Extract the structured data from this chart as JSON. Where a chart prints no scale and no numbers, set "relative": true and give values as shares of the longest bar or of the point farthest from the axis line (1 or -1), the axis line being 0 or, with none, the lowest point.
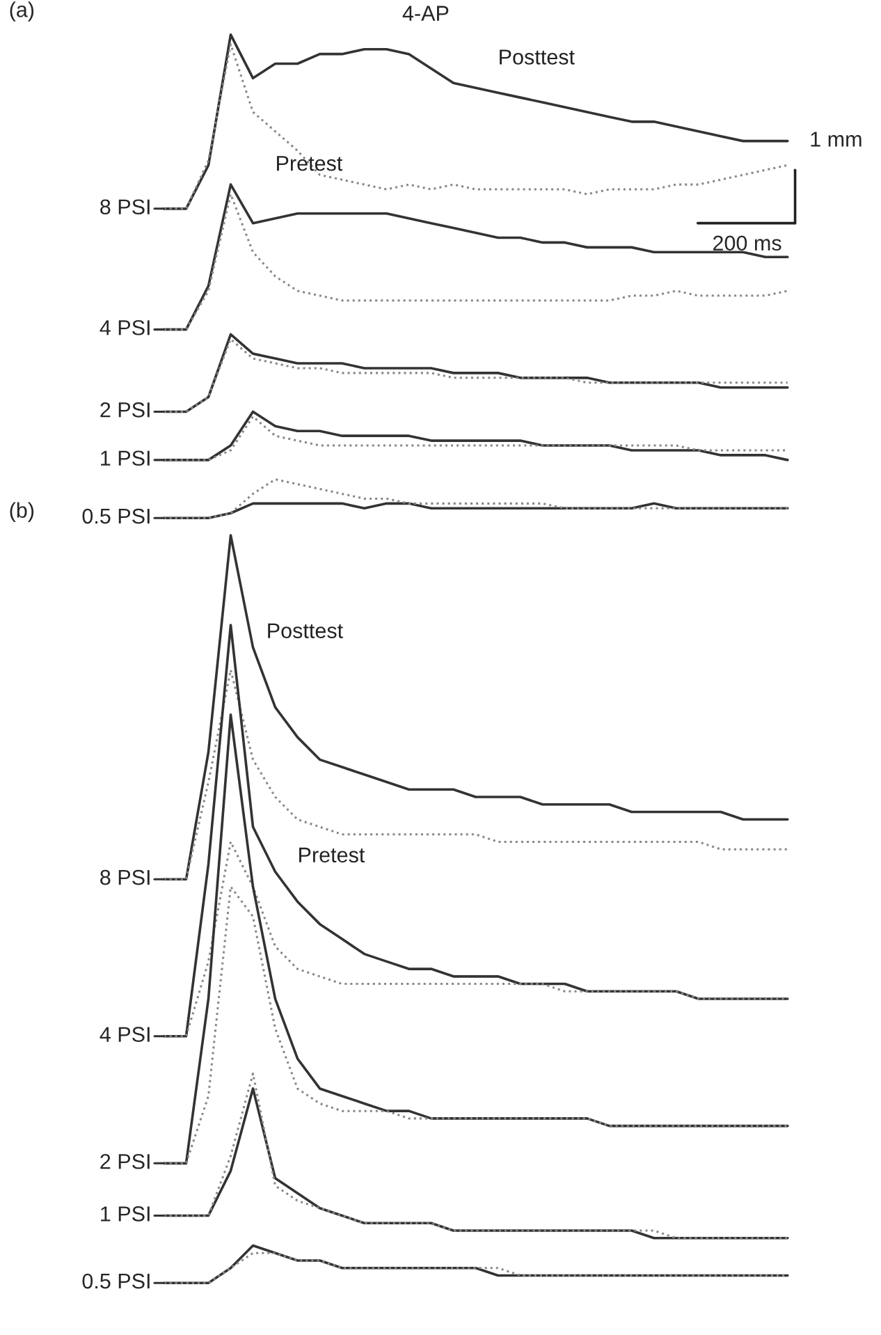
{
  "chart_data": [
    {
      "type": "line",
      "title": "(a)",
      "relative": true,
      "categories": [
        null,
        null,
        null,
        null,
        null,
        null,
        null,
        null,
        null,
        null,
        null,
        null,
        null,
        null,
        null,
        null,
        null,
        null,
        null,
        null,
        null,
        null,
        null,
        null,
        null,
        null,
        null,
        null,
        null
      ],
      "series": [
        {
          "name": "Posttest",
          "color": "#333333",
          "line_style": "solid",
          "values": [
            0.64,
            0.64,
            0.73,
            1.0,
            0.91,
            0.94,
            0.94,
            0.96,
            0.96,
            0.97,
            0.97,
            0.96,
            0.93,
            0.9,
            0.89,
            0.88,
            0.87,
            0.86,
            0.85,
            0.84,
            0.83,
            0.82,
            0.82,
            0.81,
            0.8,
            0.79,
            0.78,
            0.78,
            0.78
          ]
        },
        {
          "name": "Pretest",
          "color": "#888888",
          "line_style": "dotted",
          "values": [
            0.64,
            0.64,
            0.74,
            0.98,
            0.84,
            0.8,
            0.76,
            0.71,
            0.7,
            0.69,
            0.68,
            0.69,
            0.68,
            0.69,
            0.68,
            0.68,
            0.68,
            0.68,
            0.68,
            0.67,
            0.68,
            0.68,
            0.68,
            0.69,
            0.69,
            0.7,
            0.71,
            0.72,
            0.73
          ]
        },
        {
          "color": "#333333",
          "line_style": "solid",
          "values": [
            0.39,
            0.39,
            0.48,
            0.69,
            0.61,
            0.62,
            0.63,
            0.63,
            0.63,
            0.63,
            0.63,
            0.62,
            0.61,
            0.6,
            0.59,
            0.58,
            0.58,
            0.57,
            0.57,
            0.56,
            0.56,
            0.56,
            0.55,
            0.55,
            0.55,
            0.55,
            0.55,
            0.54,
            0.54
          ]
        },
        {
          "color": "#888888",
          "line_style": "dotted",
          "values": [
            0.39,
            0.39,
            0.47,
            0.67,
            0.55,
            0.5,
            0.47,
            0.46,
            0.45,
            0.45,
            0.45,
            0.45,
            0.45,
            0.45,
            0.45,
            0.45,
            0.45,
            0.45,
            0.45,
            0.45,
            0.45,
            0.46,
            0.46,
            0.47,
            0.46,
            0.46,
            0.46,
            0.46,
            0.47
          ]
        },
        {
          "color": "#333333",
          "line_style": "solid",
          "values": [
            0.22,
            0.22,
            0.25,
            0.38,
            0.34,
            0.33,
            0.32,
            0.32,
            0.32,
            0.31,
            0.31,
            0.31,
            0.31,
            0.3,
            0.3,
            0.3,
            0.29,
            0.29,
            0.29,
            0.29,
            0.28,
            0.28,
            0.28,
            0.28,
            0.28,
            0.27,
            0.27,
            0.27,
            0.27
          ]
        },
        {
          "color": "#888888",
          "line_style": "dotted",
          "values": [
            0.22,
            0.22,
            0.25,
            0.37,
            0.33,
            0.32,
            0.31,
            0.31,
            0.3,
            0.3,
            0.3,
            0.3,
            0.3,
            0.29,
            0.29,
            0.29,
            0.29,
            0.29,
            0.29,
            0.28,
            0.28,
            0.28,
            0.28,
            0.28,
            0.28,
            0.28,
            0.28,
            0.28,
            0.28
          ]
        },
        {
          "color": "#333333",
          "line_style": "solid",
          "values": [
            0.12,
            0.12,
            0.12,
            0.15,
            0.22,
            0.19,
            0.18,
            0.18,
            0.17,
            0.17,
            0.17,
            0.17,
            0.16,
            0.16,
            0.16,
            0.16,
            0.16,
            0.15,
            0.15,
            0.15,
            0.15,
            0.14,
            0.14,
            0.14,
            0.14,
            0.13,
            0.13,
            0.13,
            0.12
          ]
        },
        {
          "color": "#888888",
          "line_style": "dotted",
          "values": [
            0.12,
            0.12,
            0.12,
            0.14,
            0.21,
            0.17,
            0.16,
            0.15,
            0.15,
            0.15,
            0.15,
            0.15,
            0.15,
            0.15,
            0.15,
            0.15,
            0.15,
            0.15,
            0.15,
            0.15,
            0.15,
            0.15,
            0.15,
            0.15,
            0.14,
            0.14,
            0.14,
            0.14,
            0.14
          ]
        },
        {
          "color": "#333333",
          "line_style": "solid",
          "values": [
            0.0,
            0.0,
            0.0,
            0.01,
            0.03,
            0.03,
            0.03,
            0.03,
            0.03,
            0.02,
            0.03,
            0.03,
            0.02,
            0.02,
            0.02,
            0.02,
            0.02,
            0.02,
            0.02,
            0.02,
            0.02,
            0.02,
            0.03,
            0.02,
            0.02,
            0.02,
            0.02,
            0.02,
            0.02
          ]
        },
        {
          "color": "#888888",
          "line_style": "dotted",
          "values": [
            0.0,
            0.0,
            0.0,
            0.01,
            0.05,
            0.08,
            0.07,
            0.06,
            0.05,
            0.04,
            0.04,
            0.03,
            0.03,
            0.03,
            0.03,
            0.03,
            0.03,
            0.03,
            0.02,
            0.02,
            0.02,
            0.02,
            0.02,
            0.02,
            0.02,
            0.02,
            0.02,
            0.02,
            0.02
          ]
        }
      ],
      "annotations": [
        "4-AP",
        "1 mm",
        "200 ms",
        "8 PSI",
        "4 PSI",
        "2 PSI",
        "1 PSI",
        "0.5 PSI"
      ]
    },
    {
      "type": "line",
      "title": "(b)",
      "relative": true,
      "categories": [
        null,
        null,
        null,
        null,
        null,
        null,
        null,
        null,
        null,
        null,
        null,
        null,
        null,
        null,
        null,
        null,
        null,
        null,
        null,
        null,
        null,
        null,
        null,
        null,
        null,
        null,
        null,
        null,
        null
      ],
      "series": [
        {
          "name": "Posttest",
          "color": "#333333",
          "line_style": "solid",
          "values": [
            0.54,
            0.54,
            0.71,
            1.0,
            0.85,
            0.77,
            0.73,
            0.7,
            0.69,
            0.68,
            0.67,
            0.66,
            0.66,
            0.66,
            0.65,
            0.65,
            0.65,
            0.64,
            0.64,
            0.64,
            0.64,
            0.63,
            0.63,
            0.63,
            0.63,
            0.63,
            0.62,
            0.62,
            0.62
          ]
        },
        {
          "name": "Pretest",
          "color": "#888888",
          "line_style": "dotted",
          "values": [
            0.54,
            0.54,
            0.67,
            0.82,
            0.7,
            0.65,
            0.62,
            0.61,
            0.6,
            0.6,
            0.6,
            0.6,
            0.6,
            0.6,
            0.6,
            0.59,
            0.59,
            0.59,
            0.59,
            0.59,
            0.59,
            0.59,
            0.59,
            0.59,
            0.59,
            0.58,
            0.58,
            0.58,
            0.58
          ]
        },
        {
          "color": "#333333",
          "line_style": "solid",
          "values": [
            0.33,
            0.33,
            0.56,
            0.88,
            0.61,
            0.55,
            0.51,
            0.48,
            0.46,
            0.44,
            0.43,
            0.42,
            0.42,
            0.41,
            0.41,
            0.41,
            0.4,
            0.4,
            0.4,
            0.39,
            0.39,
            0.39,
            0.39,
            0.39,
            0.38,
            0.38,
            0.38,
            0.38,
            0.38
          ]
        },
        {
          "color": "#888888",
          "line_style": "dotted",
          "values": [
            0.33,
            0.33,
            0.43,
            0.59,
            0.53,
            0.45,
            0.42,
            0.41,
            0.4,
            0.4,
            0.4,
            0.4,
            0.4,
            0.4,
            0.4,
            0.4,
            0.4,
            0.4,
            0.39,
            0.39,
            0.39,
            0.39,
            0.39,
            0.39,
            0.38,
            0.38,
            0.38,
            0.38,
            0.38
          ]
        },
        {
          "color": "#333333",
          "line_style": "solid",
          "values": [
            0.16,
            0.16,
            0.38,
            0.76,
            0.53,
            0.38,
            0.3,
            0.26,
            0.25,
            0.24,
            0.23,
            0.23,
            0.22,
            0.22,
            0.22,
            0.22,
            0.22,
            0.22,
            0.22,
            0.22,
            0.21,
            0.21,
            0.21,
            0.21,
            0.21,
            0.21,
            0.21,
            0.21,
            0.21
          ]
        },
        {
          "color": "#888888",
          "line_style": "dotted",
          "values": [
            0.16,
            0.16,
            0.25,
            0.53,
            0.49,
            0.34,
            0.26,
            0.24,
            0.23,
            0.23,
            0.23,
            0.22,
            0.22,
            0.22,
            0.22,
            0.22,
            0.22,
            0.22,
            0.22,
            0.22,
            0.21,
            0.21,
            0.21,
            0.21,
            0.21,
            0.21,
            0.21,
            0.21,
            0.21
          ]
        },
        {
          "color": "#333333",
          "line_style": "solid",
          "values": [
            0.09,
            0.09,
            0.09,
            0.15,
            0.26,
            0.14,
            0.12,
            0.1,
            0.09,
            0.08,
            0.08,
            0.08,
            0.08,
            0.07,
            0.07,
            0.07,
            0.07,
            0.07,
            0.07,
            0.07,
            0.07,
            0.07,
            0.06,
            0.06,
            0.06,
            0.06,
            0.06,
            0.06,
            0.06
          ]
        },
        {
          "color": "#888888",
          "line_style": "dotted",
          "values": [
            0.09,
            0.09,
            0.09,
            0.17,
            0.28,
            0.13,
            0.11,
            0.1,
            0.09,
            0.08,
            0.08,
            0.08,
            0.08,
            0.07,
            0.07,
            0.07,
            0.07,
            0.07,
            0.07,
            0.07,
            0.07,
            0.07,
            0.07,
            0.06,
            0.06,
            0.06,
            0.06,
            0.06,
            0.06
          ]
        },
        {
          "color": "#333333",
          "line_style": "solid",
          "values": [
            0.0,
            0.0,
            0.0,
            0.02,
            0.05,
            0.04,
            0.03,
            0.03,
            0.02,
            0.02,
            0.02,
            0.02,
            0.02,
            0.02,
            0.02,
            0.01,
            0.01,
            0.01,
            0.01,
            0.01,
            0.01,
            0.01,
            0.01,
            0.01,
            0.01,
            0.01,
            0.01,
            0.01,
            0.01
          ]
        },
        {
          "color": "#888888",
          "line_style": "dotted",
          "values": [
            0.0,
            0.0,
            0.0,
            0.02,
            0.04,
            0.04,
            0.03,
            0.03,
            0.02,
            0.02,
            0.02,
            0.02,
            0.02,
            0.02,
            0.02,
            0.02,
            0.01,
            0.01,
            0.01,
            0.01,
            0.01,
            0.01,
            0.01,
            0.01,
            0.01,
            0.01,
            0.01,
            0.01,
            0.01
          ]
        }
      ],
      "annotations": [
        "8 PSI",
        "4 PSI",
        "2 PSI",
        "1 PSI",
        "0.5 PSI"
      ]
    }
  ]
}
